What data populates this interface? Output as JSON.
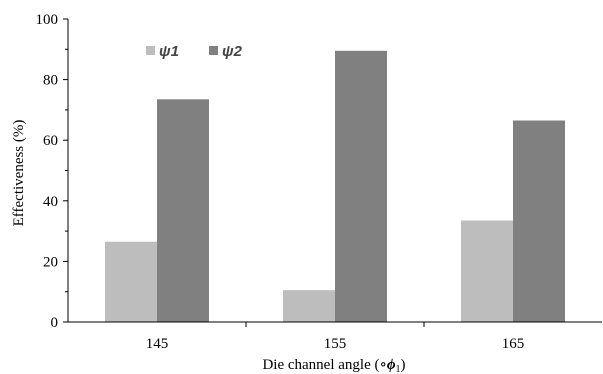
{
  "chart_data": {
    "type": "bar",
    "categories": [
      "145",
      "155",
      "165"
    ],
    "series": [
      {
        "name": "ψ1",
        "values": [
          26.5,
          10.5,
          33.5
        ],
        "color": "#bdbdbd"
      },
      {
        "name": "ψ2",
        "values": [
          73.5,
          89.5,
          66.5
        ],
        "color": "#808080"
      }
    ],
    "xlabel_main": "Die channel angle (",
    "xlabel_degree": "∘",
    "xlabel_symbol": "ϕ",
    "xlabel_subscript": "1",
    "xlabel_close": ")",
    "ylabel": "Effectiveness (%)",
    "ylim": [
      0,
      100
    ],
    "yticks": [
      0,
      20,
      40,
      60,
      80,
      100
    ],
    "grid": false,
    "legend_placement": "top-left"
  }
}
